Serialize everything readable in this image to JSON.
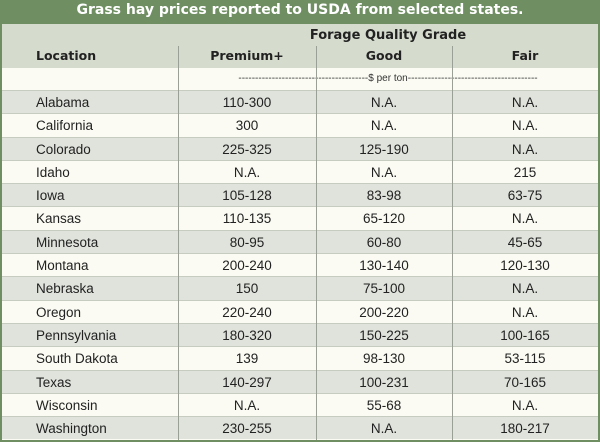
{
  "title": "Grass hay prices reported to USDA from selected states.",
  "header": {
    "group": "Forage Quality Grade",
    "columns": [
      "Location",
      "Premium+",
      "Good",
      "Fair"
    ]
  },
  "units": "---------------------------------------$ per ton---------------------------------------",
  "table": {
    "rows": [
      [
        "Alabama",
        "110-300",
        "N.A.",
        "N.A."
      ],
      [
        "California",
        "300",
        "N.A.",
        "N.A."
      ],
      [
        "Colorado",
        "225-325",
        "125-190",
        "N.A."
      ],
      [
        "Idaho",
        "N.A.",
        "N.A.",
        "215"
      ],
      [
        "Iowa",
        "105-128",
        "83-98",
        "63-75"
      ],
      [
        "Kansas",
        "110-135",
        "65-120",
        "N.A."
      ],
      [
        "Minnesota",
        "80-95",
        "60-80",
        "45-65"
      ],
      [
        "Montana",
        "200-240",
        "130-140",
        "120-130"
      ],
      [
        "Nebraska",
        "150",
        "75-100",
        "N.A."
      ],
      [
        "Oregon",
        "220-240",
        "200-220",
        "N.A."
      ],
      [
        "Pennsylvania",
        "180-320",
        "150-225",
        "100-165"
      ],
      [
        "South Dakota",
        "139",
        "98-130",
        "53-115"
      ],
      [
        "Texas",
        "140-297",
        "100-231",
        "70-165"
      ],
      [
        "Wisconsin",
        "N.A.",
        "55-68",
        "N.A."
      ],
      [
        "Washington",
        "230-255",
        "N.A.",
        "180-217"
      ]
    ]
  }
}
